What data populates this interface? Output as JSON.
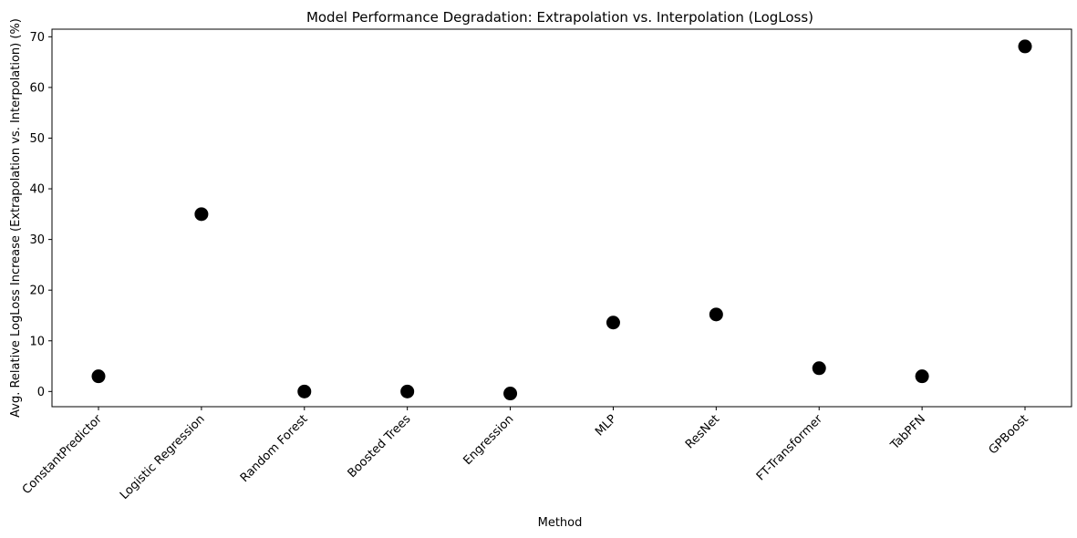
{
  "chart_data": {
    "type": "scatter",
    "title": "Model Performance Degradation: Extrapolation vs. Interpolation (LogLoss)",
    "xlabel": "Method",
    "ylabel": "Avg. Relative LogLoss Increase (Extrapolation vs. Interpolation) (%)",
    "categories": [
      "ConstantPredictor",
      "Logistic Regression",
      "Random Forest",
      "Boosted Trees",
      "Engression",
      "MLP",
      "ResNet",
      "FT-Transformer",
      "TabPFN",
      "GPBoost"
    ],
    "series": [
      {
        "values": [
          3.0,
          35.0,
          0.0,
          0.0,
          -0.4,
          13.6,
          15.2,
          4.6,
          3.0,
          68.1
        ]
      }
    ],
    "ylim": [
      -3,
      71.5
    ],
    "yticks": [
      0,
      10,
      20,
      30,
      40,
      50,
      60,
      70
    ],
    "grid": false,
    "marker_color": "#000000"
  }
}
